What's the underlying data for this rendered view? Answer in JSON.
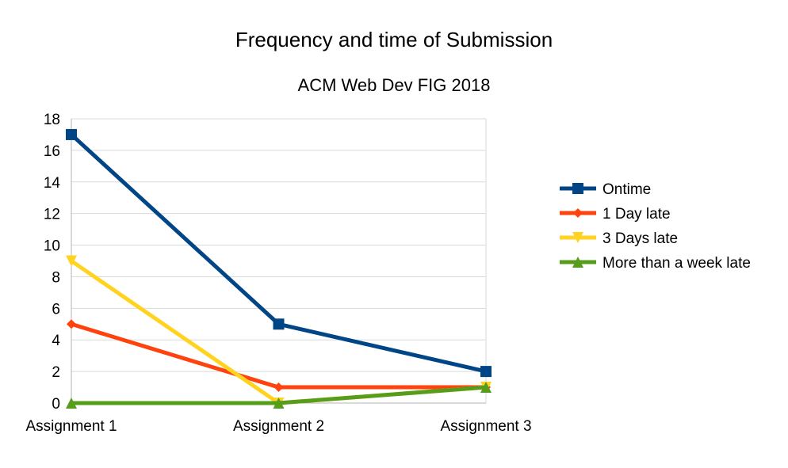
{
  "chart_data": {
    "type": "line",
    "title": "Frequency and time of Submission",
    "subtitle": "ACM Web Dev FIG 2018",
    "xlabel": "",
    "ylabel": "",
    "categories": [
      "Assignment 1",
      "Assignment 2",
      "Assignment 3"
    ],
    "ylim": [
      0,
      18
    ],
    "yticks": [
      0,
      2,
      4,
      6,
      8,
      10,
      12,
      14,
      16,
      18
    ],
    "grid": true,
    "legend_position": "right",
    "series": [
      {
        "name": "Ontime",
        "values": [
          17,
          5,
          2
        ],
        "color": "#004586",
        "marker": "square"
      },
      {
        "name": "1 Day late",
        "values": [
          5,
          1,
          1
        ],
        "color": "#ff420e",
        "marker": "diamond"
      },
      {
        "name": "3 Days late",
        "values": [
          9,
          0,
          1
        ],
        "color": "#ffd320",
        "marker": "triangle-down"
      },
      {
        "name": "More than a week late",
        "values": [
          0,
          0,
          1
        ],
        "color": "#579d1c",
        "marker": "triangle-up"
      }
    ]
  }
}
